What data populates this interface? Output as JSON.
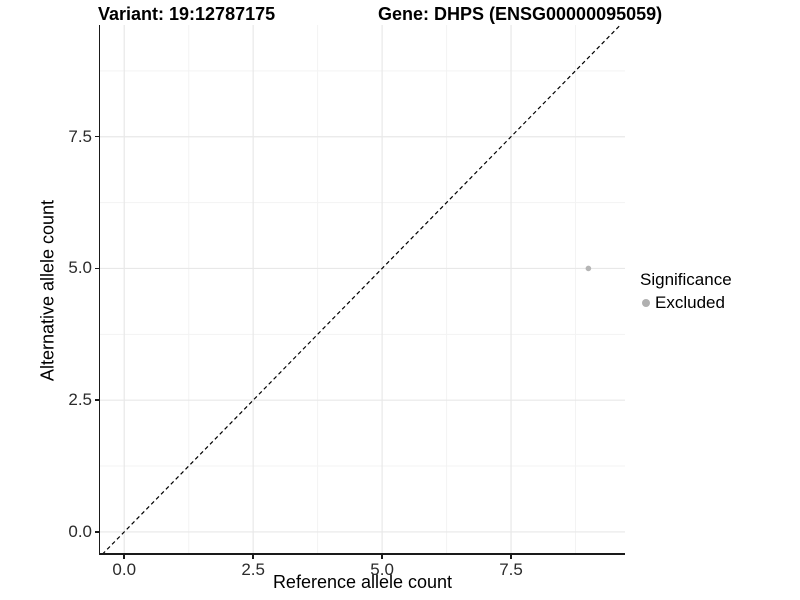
{
  "header": {
    "variant_title": "Variant: 19:12787175",
    "gene_title": "Gene: DHPS (ENSG00000095059)"
  },
  "chart_data": {
    "type": "scatter",
    "titles": [
      "Variant: 19:12787175",
      "Gene: DHPS (ENSG00000095059)"
    ],
    "xlabel": "Reference allele count",
    "ylabel": "Alternative allele count",
    "x_ticks": [
      0,
      2.5,
      5,
      7.5
    ],
    "x_tick_labels": [
      "0.0",
      "2.5",
      "5.0",
      "7.5"
    ],
    "y_ticks": [
      0,
      2.5,
      5,
      7.5
    ],
    "y_tick_labels": [
      "0.0",
      "2.5",
      "5.0",
      "7.5"
    ],
    "xlim": [
      -0.47,
      9.71
    ],
    "ylim": [
      -0.4,
      9.62
    ],
    "grid": {
      "on": true,
      "major_color": "#e8e8e8",
      "minor_color": "#f3f3f3"
    },
    "reference_line": {
      "slope": 1,
      "intercept": 0,
      "style": "dashed",
      "color": "#000000"
    },
    "series": [
      {
        "name": "Excluded",
        "color": "#b5b5b5",
        "points": [
          {
            "x": 9,
            "y": 5
          }
        ]
      }
    ],
    "legend": {
      "title": "Significance",
      "position": "right",
      "entries": [
        {
          "label": "Excluded",
          "color": "#b0b0b0"
        }
      ]
    },
    "axis_color": "#1a1a1a"
  }
}
